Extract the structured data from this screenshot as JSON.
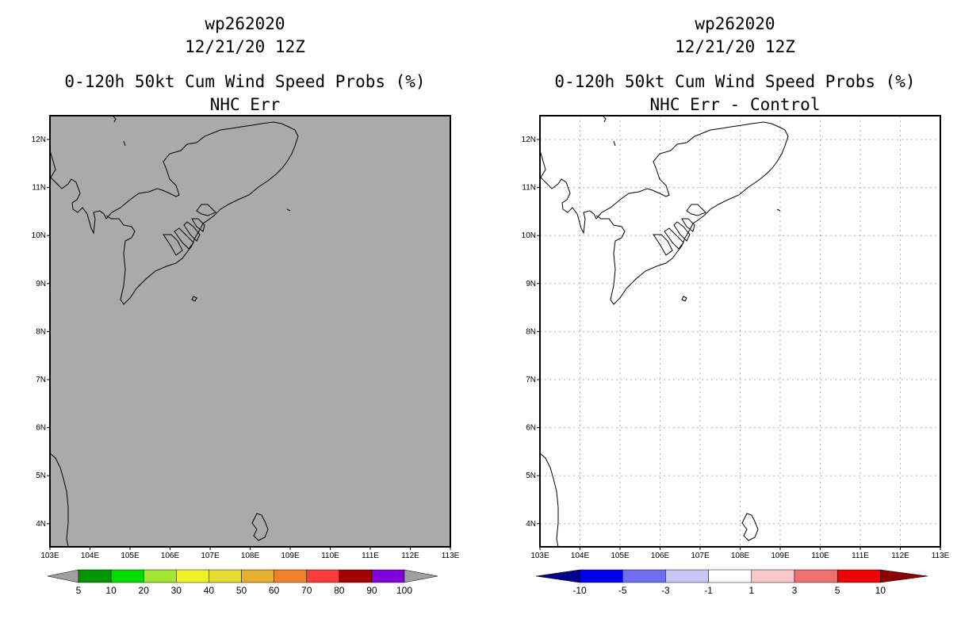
{
  "left": {
    "storm_id": "wp262020",
    "datetime": "12/21/20 12Z",
    "product": "0-120h 50kt Cum Wind Speed Probs (%)",
    "subtitle": "NHC Err",
    "background_color": "#aaaaaa",
    "lat_labels": [
      "12N",
      "11N",
      "10N",
      "9N",
      "8N",
      "7N",
      "6N",
      "5N",
      "4N"
    ],
    "lon_labels": [
      "103E",
      "104E",
      "105E",
      "106E",
      "107E",
      "108E",
      "109E",
      "110E",
      "111E",
      "112E",
      "113E"
    ],
    "colorbar": {
      "colors": [
        "#a0a0a0",
        "#009600",
        "#00dc00",
        "#a0e632",
        "#f0f028",
        "#e6dc32",
        "#e6af2d",
        "#f08228",
        "#fa3c3c",
        "#a00000",
        "#8200dc",
        "#a0a0a0"
      ],
      "labels": [
        "5",
        "10",
        "20",
        "30",
        "40",
        "50",
        "60",
        "70",
        "80",
        "90",
        "100"
      ]
    }
  },
  "right": {
    "storm_id": "wp262020",
    "datetime": "12/21/20 12Z",
    "product": "0-120h 50kt Cum Wind Speed Probs (%)",
    "subtitle": "NHC Err - Control",
    "background_color": "#ffffff",
    "lat_labels": [
      "12N",
      "11N",
      "10N",
      "9N",
      "8N",
      "7N",
      "6N",
      "5N",
      "4N"
    ],
    "lon_labels": [
      "103E",
      "104E",
      "105E",
      "106E",
      "107E",
      "108E",
      "109E",
      "110E",
      "111E",
      "112E",
      "113E"
    ],
    "colorbar": {
      "colors": [
        "#00008c",
        "#0000f0",
        "#6e6ef0",
        "#c8c8f8",
        "#ffffff",
        "#fac8c8",
        "#f07070",
        "#f00000",
        "#8c0000"
      ],
      "labels": [
        "-10",
        "-5",
        "-3",
        "-1",
        "1",
        "3",
        "5",
        "10"
      ]
    }
  }
}
